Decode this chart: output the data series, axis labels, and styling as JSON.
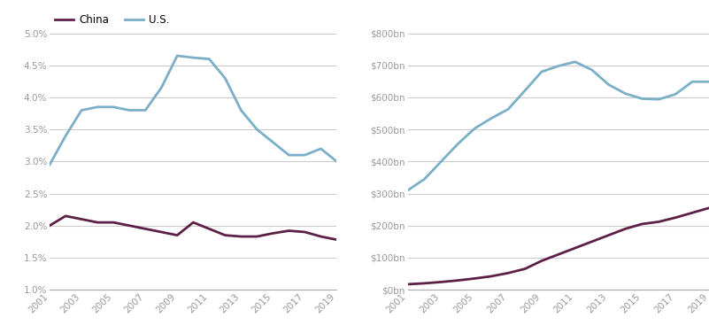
{
  "years": [
    2001,
    2002,
    2003,
    2004,
    2005,
    2006,
    2007,
    2008,
    2009,
    2010,
    2011,
    2012,
    2013,
    2014,
    2015,
    2016,
    2017,
    2018,
    2019
  ],
  "us_pct": [
    0.0295,
    0.034,
    0.038,
    0.0385,
    0.0385,
    0.038,
    0.038,
    0.0415,
    0.0465,
    0.0462,
    0.046,
    0.043,
    0.038,
    0.035,
    0.033,
    0.031,
    0.031,
    0.032,
    0.03
  ],
  "china_pct": [
    0.02,
    0.0215,
    0.021,
    0.0205,
    0.0205,
    0.02,
    0.0195,
    0.019,
    0.0185,
    0.0205,
    0.0195,
    0.0185,
    0.0183,
    0.0183,
    0.0188,
    0.0192,
    0.019,
    0.0183,
    0.0178
  ],
  "us_bn": [
    310,
    345,
    400,
    455,
    503,
    535,
    563,
    621,
    680,
    698,
    711,
    686,
    640,
    612,
    596,
    594,
    610,
    649,
    649
  ],
  "china_bn": [
    17,
    20,
    24,
    29,
    35,
    42,
    52,
    65,
    90,
    110,
    130,
    150,
    170,
    190,
    205,
    212,
    225,
    240,
    255
  ],
  "us_color": "#7aafc7",
  "china_color": "#5c1f45",
  "left_ylim": [
    0.01,
    0.05
  ],
  "left_yticks": [
    0.01,
    0.015,
    0.02,
    0.025,
    0.03,
    0.035,
    0.04,
    0.045,
    0.05
  ],
  "right_ylim": [
    0,
    800
  ],
  "right_yticks": [
    0,
    100,
    200,
    300,
    400,
    500,
    600,
    700,
    800
  ],
  "grid_color": "#cccccc",
  "tick_label_color": "#999999",
  "legend_china": "China",
  "legend_us": "U.S.",
  "line_width": 2.0,
  "xticks": [
    2001,
    2003,
    2005,
    2007,
    2009,
    2011,
    2013,
    2015,
    2017,
    2019
  ]
}
